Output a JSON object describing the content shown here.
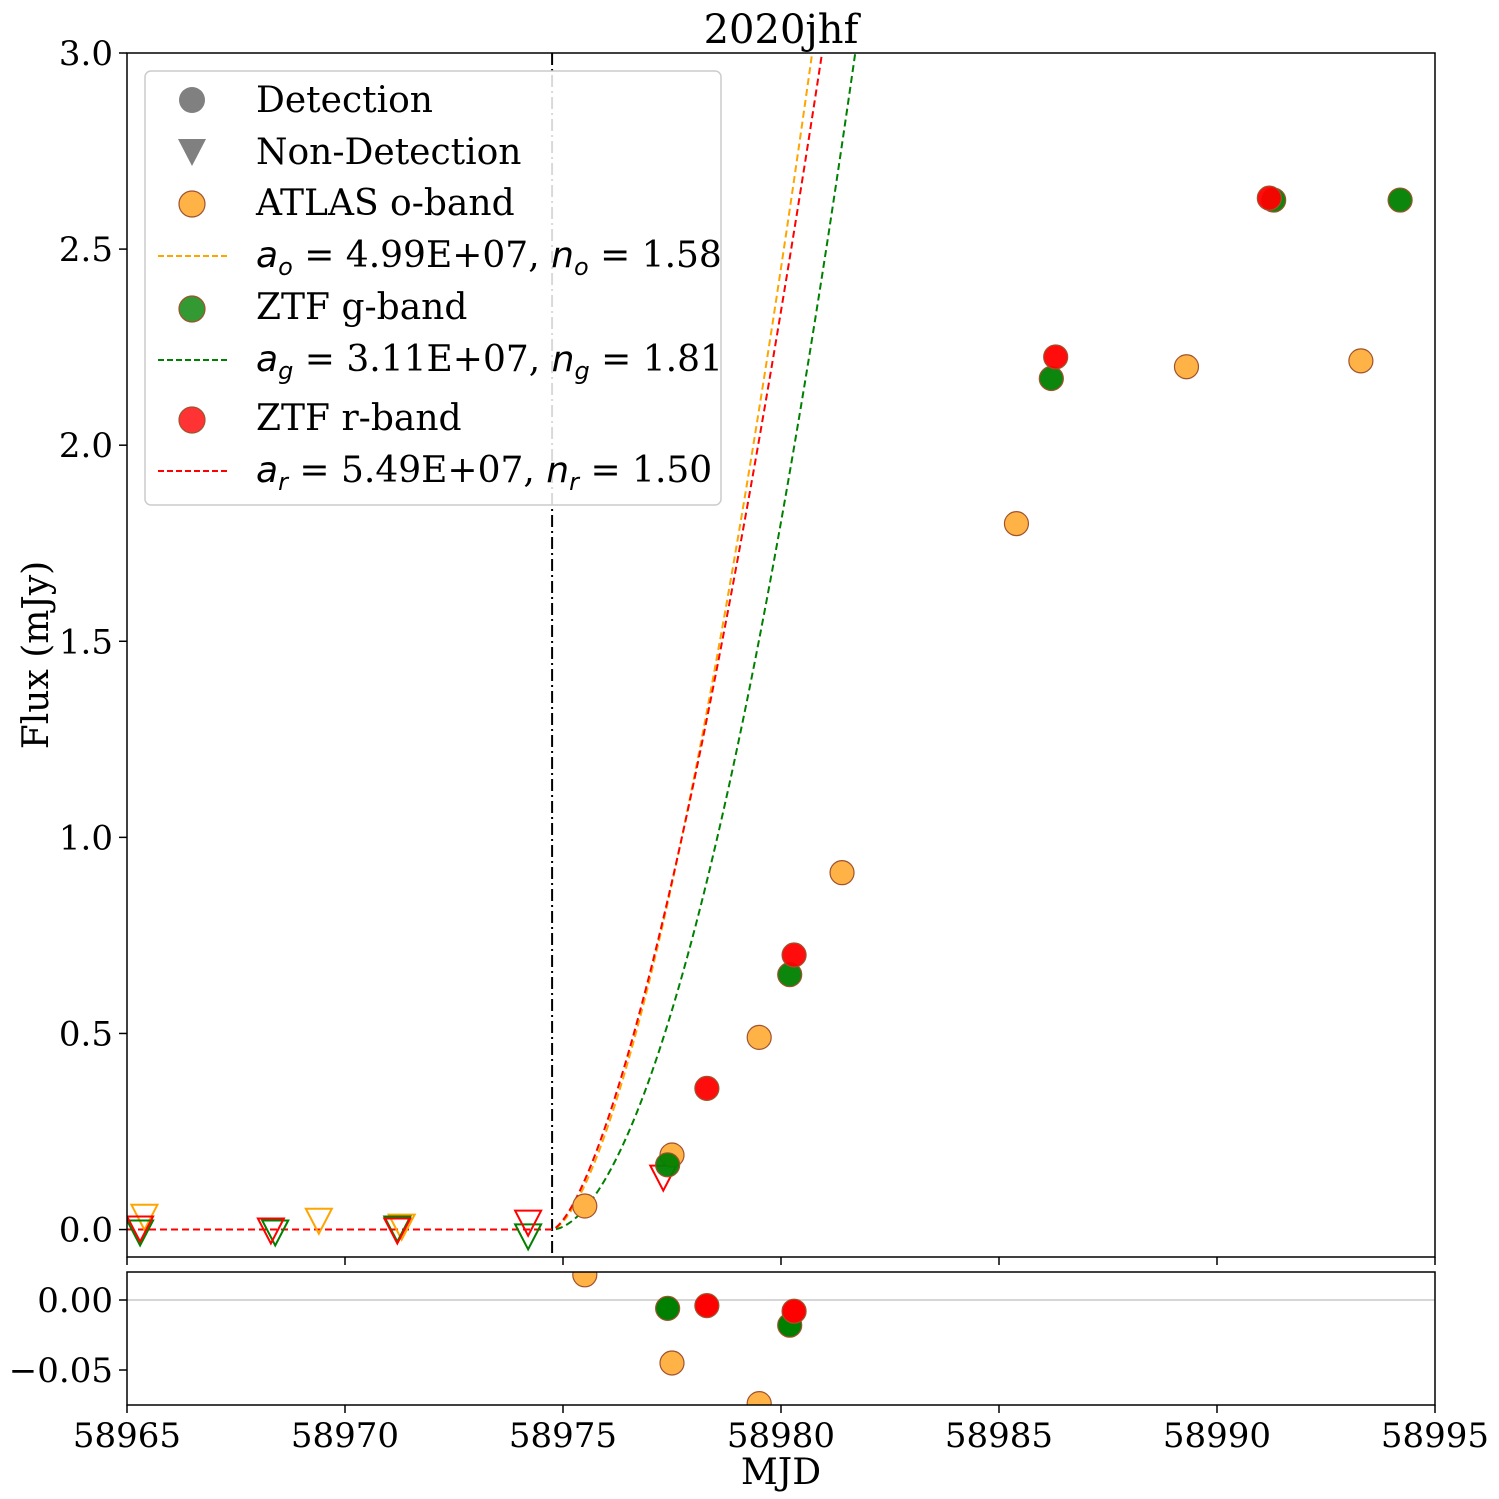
{
  "chart_data": {
    "type": "scatter",
    "title": "2020jhf",
    "xlabel": "MJD",
    "ylabel": "Flux (mJy)",
    "xlim": [
      58965,
      58995
    ],
    "ylim": [
      -0.07,
      3.0
    ],
    "residual_ylim": [
      -0.075,
      0.02
    ],
    "xticks": [
      58965,
      58970,
      58975,
      58980,
      58985,
      58990,
      58995
    ],
    "xtick_labels": [
      "58965",
      "58970",
      "58975",
      "58980",
      "58985",
      "58990",
      "58995"
    ],
    "yticks": [
      0.0,
      0.5,
      1.0,
      1.5,
      2.0,
      2.5,
      3.0
    ],
    "ytick_labels": [
      "0.0",
      "0.5",
      "1.0",
      "1.5",
      "2.0",
      "2.5",
      "3.0"
    ],
    "residual_yticks": [
      0.0,
      -0.05
    ],
    "residual_ytick_labels": [
      "0.00",
      "−0.05"
    ],
    "explosion_epoch": 58974.75,
    "legend": {
      "position": "top-left",
      "detection_label": "Detection",
      "nondetection_label": "Non-Detection",
      "o_label": "ATLAS o-band",
      "g_label": "ZTF g-band",
      "r_label": "ZTF r-band",
      "fits": {
        "o": {
          "a_sym": "a",
          "sub": "o",
          "a_val": " = 4.99E+07, ",
          "n_sym": "n",
          "n_val": " = 1.58"
        },
        "g": {
          "a_sym": "a",
          "sub": "g",
          "a_val": " = 3.11E+07, ",
          "n_sym": "n",
          "n_val": " = 1.81"
        },
        "r": {
          "a_sym": "a",
          "sub": "r",
          "a_val": " = 5.49E+07, ",
          "n_sym": "n",
          "n_val": " = 1.50"
        }
      }
    },
    "series": [
      {
        "name": "ATLAS o-band",
        "key": "o",
        "color": "#ffa500",
        "marker_color": "#ffb347",
        "fit": {
          "t0": 58974.75,
          "a": 0.1785,
          "n": 1.58
        },
        "detections": [
          {
            "x": 58975.5,
            "y": 0.06
          },
          {
            "x": 58977.5,
            "y": 0.19
          },
          {
            "x": 58979.5,
            "y": 0.49
          },
          {
            "x": 58981.4,
            "y": 0.91
          },
          {
            "x": 58985.4,
            "y": 1.8
          },
          {
            "x": 58989.3,
            "y": 2.2
          },
          {
            "x": 58993.3,
            "y": 2.215
          }
        ],
        "nondetections": [
          {
            "x": 58965.4,
            "y": 0.03
          },
          {
            "x": 58969.4,
            "y": 0.02
          },
          {
            "x": 58971.3,
            "y": 0.005
          }
        ],
        "residuals": [
          {
            "x": 58975.5,
            "y": 0.018
          },
          {
            "x": 58977.5,
            "y": -0.045
          },
          {
            "x": 58979.5,
            "y": -0.074
          }
        ]
      },
      {
        "name": "ZTF g-band",
        "key": "g",
        "color": "#008000",
        "marker_color": "#008000",
        "fit": {
          "t0": 58974.75,
          "a": 0.0897,
          "n": 1.81
        },
        "detections": [
          {
            "x": 58977.4,
            "y": 0.165
          },
          {
            "x": 58980.2,
            "y": 0.65
          },
          {
            "x": 58986.2,
            "y": 2.17
          },
          {
            "x": 58991.3,
            "y": 2.625
          },
          {
            "x": 58994.2,
            "y": 2.625
          }
        ],
        "nondetections": [
          {
            "x": 58965.3,
            "y": -0.01
          },
          {
            "x": 58968.4,
            "y": -0.01
          },
          {
            "x": 58971.2,
            "y": 0.0
          },
          {
            "x": 58974.2,
            "y": -0.02
          }
        ],
        "residuals": [
          {
            "x": 58977.4,
            "y": -0.006
          },
          {
            "x": 58980.2,
            "y": -0.018
          }
        ]
      },
      {
        "name": "ZTF r-band",
        "key": "r",
        "color": "#ff0000",
        "marker_color": "#ff0000",
        "fit": {
          "t0": 58974.75,
          "a": 0.1947,
          "n": 1.5
        },
        "detections": [
          {
            "x": 58978.3,
            "y": 0.36
          },
          {
            "x": 58980.3,
            "y": 0.7
          },
          {
            "x": 58986.3,
            "y": 2.225
          },
          {
            "x": 58991.2,
            "y": 2.63
          }
        ],
        "nondetections": [
          {
            "x": 58965.3,
            "y": 0.0
          },
          {
            "x": 58968.3,
            "y": -0.005
          },
          {
            "x": 58971.2,
            "y": -0.005
          },
          {
            "x": 58974.2,
            "y": 0.015
          },
          {
            "x": 58977.3,
            "y": 0.13
          }
        ],
        "residuals": [
          {
            "x": 58978.3,
            "y": -0.004
          },
          {
            "x": 58980.3,
            "y": -0.008
          }
        ]
      }
    ]
  }
}
